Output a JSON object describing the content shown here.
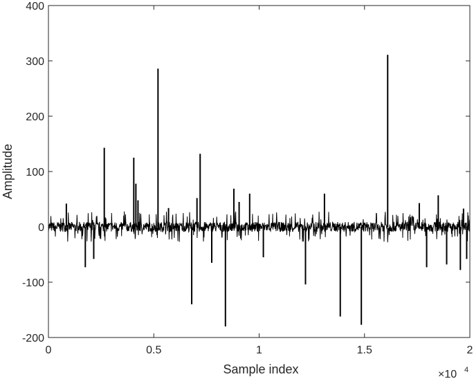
{
  "chart_data": {
    "type": "line",
    "xlabel": "Sample index",
    "ylabel": "Amplitude",
    "x_exponent_label": "×10",
    "x_exponent_power": "4",
    "xlim": [
      0,
      20000
    ],
    "ylim": [
      -200,
      400
    ],
    "x_ticks": [
      0,
      5000,
      10000,
      15000,
      20000
    ],
    "x_tick_labels": [
      "0",
      "0.5",
      "1",
      "1.5",
      "2"
    ],
    "y_ticks": [
      -200,
      -100,
      0,
      100,
      200,
      300,
      400
    ],
    "y_tick_labels": [
      "-200",
      "-100",
      "0",
      "100",
      "200",
      "300",
      "400"
    ],
    "grid": false,
    "line_color": "#000000",
    "noise_band": [
      -10,
      10
    ],
    "series": [
      {
        "x": [
          850,
          1750,
          2150,
          2650,
          4050,
          4150,
          4250,
          5200,
          5700,
          6800,
          7050,
          7200,
          7750,
          8400,
          8800,
          9050,
          9550,
          10200,
          12200,
          13100,
          13850,
          14850,
          16100,
          17600,
          17950,
          18500,
          18900,
          19550,
          19700,
          19850
        ],
        "values": [
          42,
          -73,
          -58,
          143,
          125,
          78,
          48,
          286,
          34,
          -140,
          52,
          132,
          -65,
          -180,
          69,
          45,
          60,
          -55,
          -104,
          60,
          -162,
          -177,
          311,
          43,
          -73,
          57,
          -68,
          -78,
          33,
          -58
        ]
      }
    ]
  }
}
